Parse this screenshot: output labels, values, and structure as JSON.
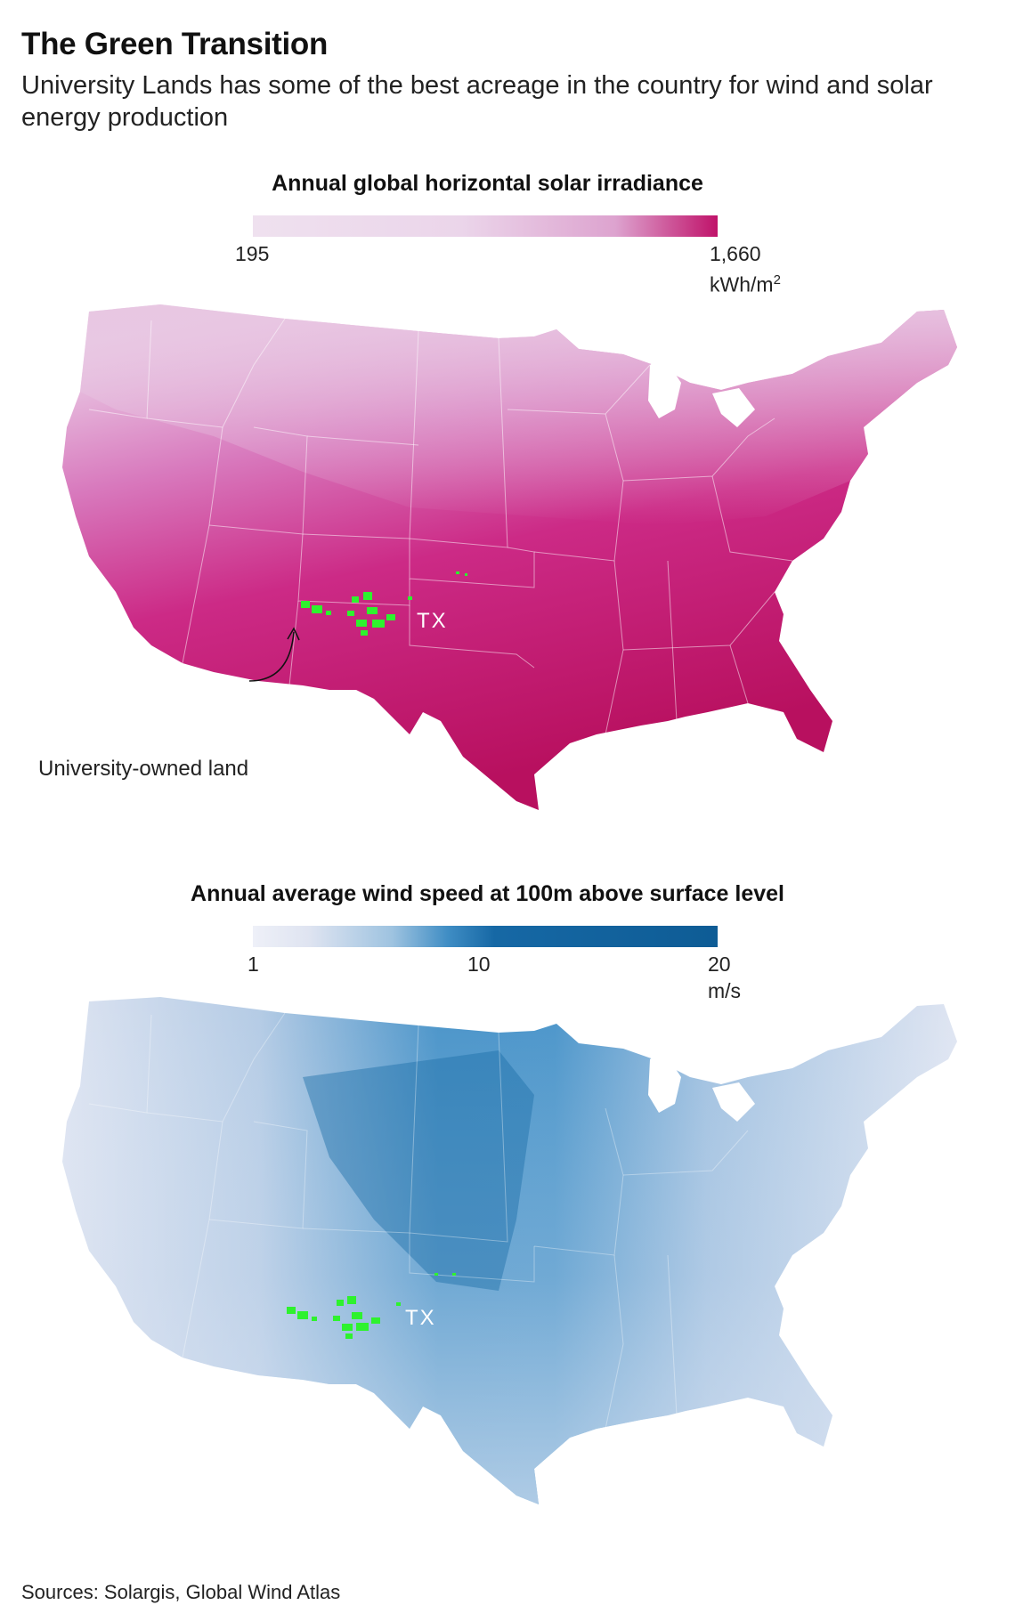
{
  "header": {
    "title": "The Green Transition",
    "subtitle": "University Lands has some of the best acreage in the country for wind and solar energy production"
  },
  "solar_panel": {
    "legend_title": "Annual global horizontal solar irradiance",
    "scale_min": "195",
    "scale_max": "1,660",
    "unit_base": "kWh/m",
    "unit_sup": "2",
    "colors": {
      "low": "#efe1ef",
      "mid": "#dda3cf",
      "high": "#c0136a"
    },
    "state_label": "TX",
    "annotation": "University-owned land"
  },
  "wind_panel": {
    "legend_title": "Annual average wind speed at 100m above surface level",
    "scale_min": "1",
    "scale_mid": "10",
    "scale_max": "20",
    "unit": "m/s",
    "colors": {
      "low": "#eef0f8",
      "mid": "#3f8dc4",
      "high": "#0e5c95"
    },
    "state_label": "TX"
  },
  "markers": {
    "land_color": "#2ef22e"
  },
  "footer": {
    "sources": "Sources: Solargis, Global Wind Atlas"
  }
}
